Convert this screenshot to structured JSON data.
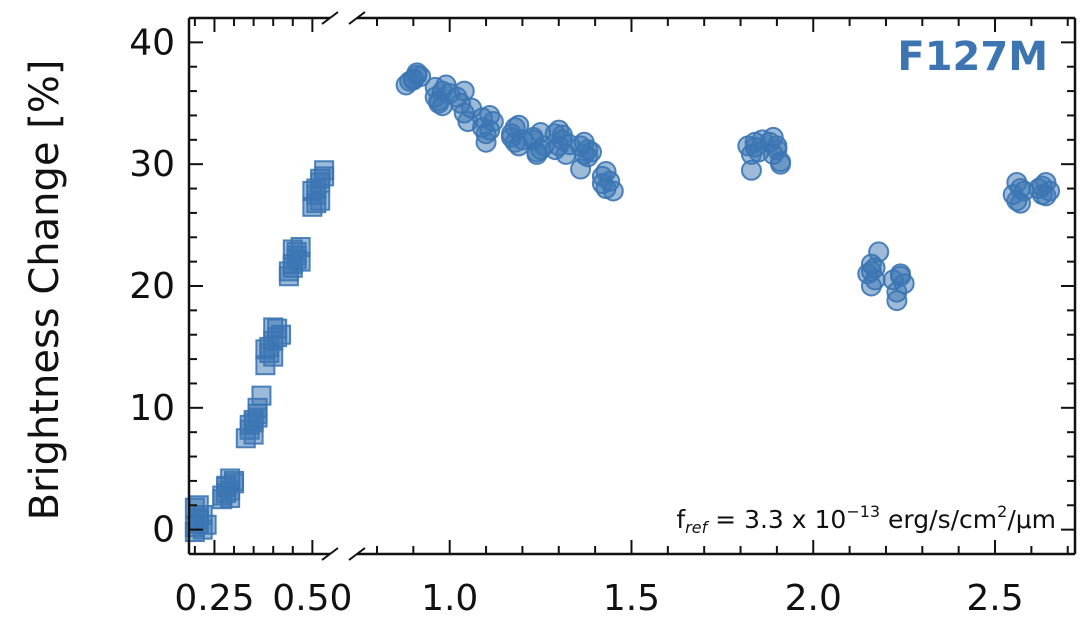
{
  "chart_data": {
    "type": "scatter",
    "panel_label": "F127M",
    "ylabel": "Brightness Change [%]",
    "xlabel": "",
    "ylim": [
      -2,
      42
    ],
    "y_ticks": [
      0,
      10,
      20,
      30,
      40
    ],
    "grid": false,
    "broken_x_axis": true,
    "colors": {
      "marker": "#3b76b3",
      "label": "#3d75b2",
      "axis": "#111111"
    },
    "segments": [
      {
        "name": "left",
        "xlim": [
          0.185,
          0.545
        ],
        "ticks": [
          0.25,
          0.5
        ],
        "tick_labels": [
          "0.25",
          "0.50"
        ]
      },
      {
        "name": "right",
        "xlim": [
          0.745,
          2.72
        ],
        "ticks": [
          1.0,
          1.5,
          2.0,
          2.5
        ],
        "tick_labels": [
          "1.0",
          "1.5",
          "2.0",
          "2.5"
        ]
      }
    ],
    "annotation": {
      "prefix": "f",
      "subscript": "ref",
      "middle": " = 3.3 x 10",
      "superscript": "−13",
      "unit_a": " erg/s/cm",
      "unit_sup": "2",
      "unit_b": "/μm"
    },
    "series": [
      {
        "marker": "square",
        "x": [
          0.2,
          0.21,
          0.2,
          0.21,
          0.22,
          0.2,
          0.21,
          0.22,
          0.23,
          0.21,
          0.27,
          0.28,
          0.29,
          0.28,
          0.3,
          0.27,
          0.29,
          0.3,
          0.28,
          0.29,
          0.33,
          0.34,
          0.35,
          0.36,
          0.34,
          0.35,
          0.36,
          0.37,
          0.35,
          0.36,
          0.38,
          0.39,
          0.4,
          0.41,
          0.39,
          0.4,
          0.42,
          0.41,
          0.38,
          0.4,
          0.44,
          0.45,
          0.46,
          0.45,
          0.47,
          0.44,
          0.46,
          0.47,
          0.45,
          0.46,
          0.5,
          0.51,
          0.52,
          0.53,
          0.51,
          0.52,
          0.5,
          0.53,
          0.52,
          0.51
        ],
        "y": [
          0.2,
          1.0,
          1.8,
          0.5,
          0.0,
          -0.2,
          2.0,
          1.2,
          0.4,
          0.8,
          2.5,
          3.5,
          4.2,
          3.0,
          3.8,
          2.8,
          3.2,
          4.0,
          3.6,
          2.6,
          7.5,
          8.2,
          9.0,
          9.5,
          8.6,
          7.8,
          10.0,
          11.0,
          8.8,
          9.2,
          13.5,
          14.5,
          15.5,
          16.5,
          15.0,
          14.2,
          16.0,
          15.8,
          14.8,
          16.6,
          20.8,
          21.8,
          22.5,
          23.0,
          22.0,
          21.2,
          22.8,
          23.2,
          21.5,
          22.2,
          26.5,
          27.5,
          28.5,
          29.5,
          28.0,
          27.0,
          27.8,
          29.0,
          28.8,
          26.8
        ]
      },
      {
        "marker": "circle",
        "x": [
          0.88,
          0.9,
          0.91,
          0.92,
          0.89,
          0.91,
          0.9,
          0.96,
          0.98,
          0.97,
          0.99,
          1.0,
          0.98,
          0.97,
          0.96,
          1.03,
          1.04,
          1.05,
          1.06,
          1.04,
          1.02,
          1.09,
          1.1,
          1.11,
          1.12,
          1.1,
          1.09,
          1.11,
          1.17,
          1.18,
          1.19,
          1.2,
          1.18,
          1.17,
          1.19,
          1.23,
          1.24,
          1.25,
          1.26,
          1.24,
          1.23,
          1.25,
          1.29,
          1.3,
          1.31,
          1.32,
          1.3,
          1.29,
          1.31,
          1.33,
          1.36,
          1.37,
          1.38,
          1.39,
          1.37,
          1.36,
          1.38,
          1.42,
          1.43,
          1.44,
          1.45,
          1.43,
          1.42,
          1.82,
          1.83,
          1.84,
          1.85,
          1.86,
          1.83,
          1.84,
          1.88,
          1.89,
          1.9,
          1.91,
          1.89,
          1.9,
          1.91,
          2.15,
          2.16,
          2.17,
          2.18,
          2.16,
          2.17,
          2.16,
          2.22,
          2.23,
          2.24,
          2.25,
          2.23,
          2.24,
          2.55,
          2.56,
          2.57,
          2.58,
          2.56,
          2.57,
          2.62,
          2.63,
          2.64,
          2.65,
          2.63,
          2.64
        ],
        "y": [
          36.5,
          37.0,
          37.5,
          37.2,
          36.8,
          37.3,
          36.9,
          35.5,
          36.0,
          35.2,
          36.5,
          35.8,
          34.8,
          35.0,
          36.3,
          35.0,
          34.2,
          33.5,
          34.6,
          36.0,
          35.5,
          33.0,
          32.5,
          34.0,
          33.5,
          31.8,
          33.8,
          32.8,
          32.5,
          31.8,
          33.2,
          32.0,
          33.0,
          32.2,
          31.5,
          32.0,
          31.0,
          32.6,
          31.5,
          30.8,
          32.2,
          31.2,
          32.5,
          31.5,
          32.0,
          30.8,
          32.8,
          31.2,
          32.4,
          31.6,
          31.5,
          30.8,
          31.2,
          31.0,
          31.8,
          29.6,
          30.6,
          29.0,
          28.0,
          28.6,
          27.8,
          29.4,
          28.4,
          31.5,
          30.8,
          31.8,
          31.0,
          32.0,
          29.5,
          31.4,
          31.8,
          30.8,
          31.2,
          30.2,
          32.2,
          31.5,
          30.0,
          21.0,
          21.8,
          20.5,
          22.8,
          20.0,
          21.5,
          21.2,
          20.5,
          19.5,
          21.0,
          20.2,
          18.8,
          20.8,
          27.5,
          28.5,
          26.8,
          27.8,
          27.0,
          28.0,
          28.0,
          27.5,
          28.5,
          27.8,
          28.2,
          27.4
        ]
      }
    ]
  }
}
